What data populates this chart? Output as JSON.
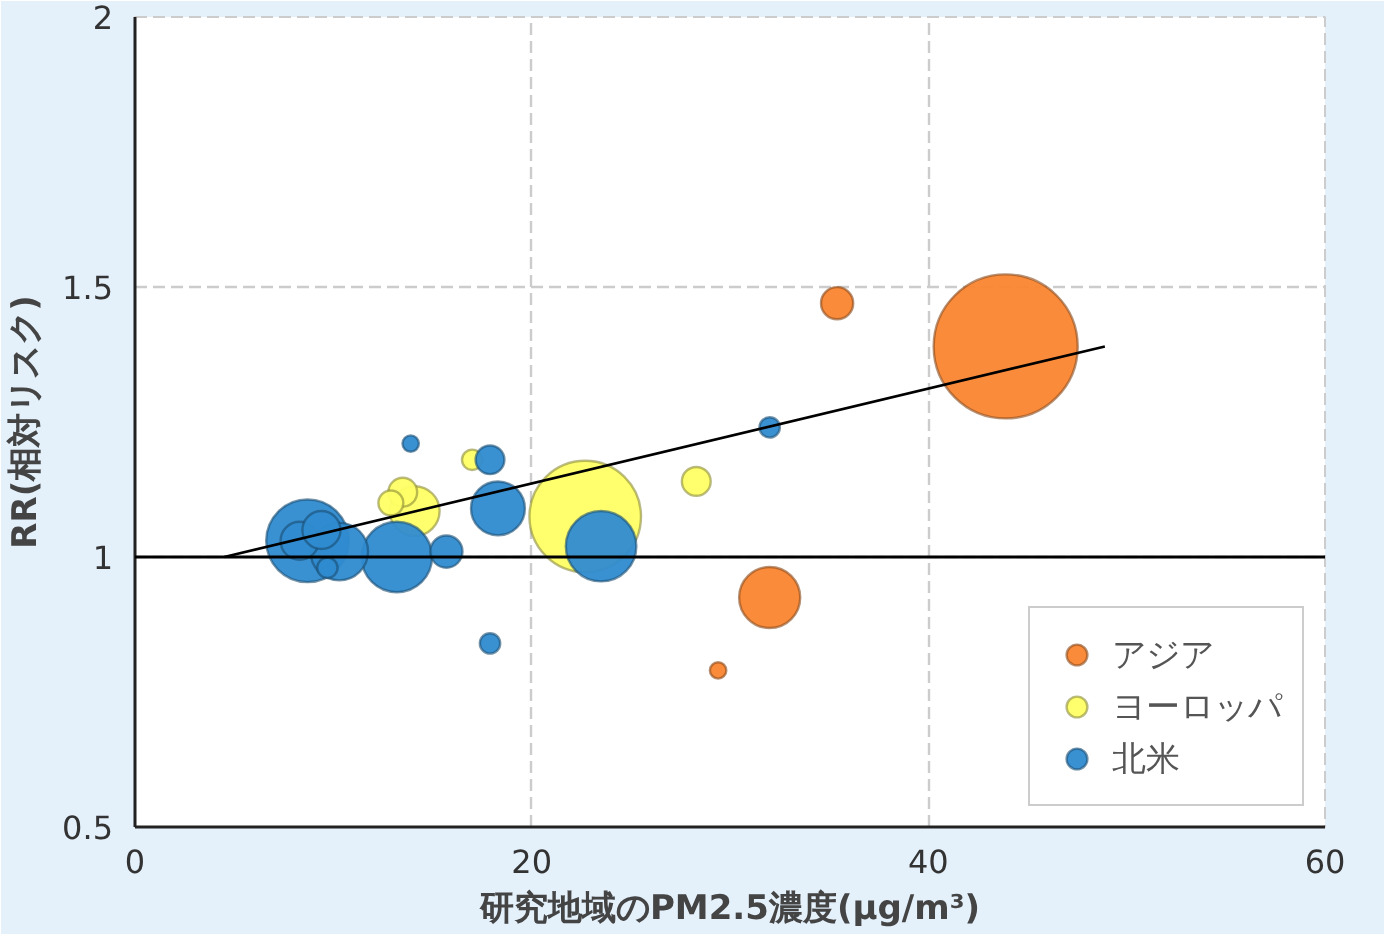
{
  "chart_data": {
    "type": "bubble",
    "xlabel": "研究地域のPM2.5濃度(μg/m³)",
    "ylabel": "RR(相対リスク)",
    "xlim": [
      0,
      60
    ],
    "ylim": [
      0.5,
      2
    ],
    "xticks": [
      0,
      20,
      40,
      60
    ],
    "yticks": [
      0.5,
      1,
      1.5,
      2
    ],
    "grid": true,
    "legend": "bottom right",
    "ref_lines": [
      {
        "axis": "y",
        "value": 1,
        "color": "#000000"
      }
    ],
    "series": [
      {
        "name": "アジア",
        "color": "#fa8530",
        "x": [
          35.4,
          43.9,
          32.0,
          29.4
        ],
        "values": [
          1.47,
          1.39,
          0.925,
          0.79
        ],
        "sizes": [
          0.05,
          1,
          0.18,
          0.013
        ]
      },
      {
        "name": "ヨーロッパ",
        "color": "#ffff66",
        "x": [
          22.7,
          28.3,
          17.0,
          14.1,
          13.5,
          12.9
        ],
        "values": [
          1.075,
          1.14,
          1.18,
          1.085,
          1.12,
          1.1
        ],
        "sizes": [
          0.6,
          0.04,
          0.02,
          0.12,
          0.04,
          0.03
        ]
      },
      {
        "name": "北米",
        "color": "#2f8bd0",
        "x": [
          13.9,
          17.9,
          17.9,
          32.0,
          23.5,
          18.3,
          13.2,
          15.7,
          8.7,
          10.3,
          8.3,
          9.4,
          9.7
        ],
        "values": [
          1.21,
          1.18,
          0.84,
          1.24,
          1.02,
          1.09,
          1.0,
          1.01,
          1.03,
          1.01,
          1.03,
          1.05,
          0.98
        ],
        "sizes": [
          0.013,
          0.04,
          0.02,
          0.02,
          0.24,
          0.14,
          0.24,
          0.05,
          0.33,
          0.16,
          0.07,
          0.07,
          0.02
        ]
      },
      {
        "type": "line",
        "color": "#000000",
        "x": [
          4.5,
          48.9
        ],
        "values": [
          1.0,
          1.39
        ]
      }
    ]
  }
}
